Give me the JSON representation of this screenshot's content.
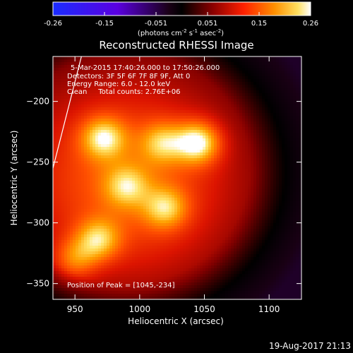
{
  "footer_timestamp": "19-Aug-2017 21:13",
  "colorbar": {
    "ticks": [
      "-0.26",
      "-0.15",
      "-0.051",
      "0.051",
      "0.15",
      "0.26"
    ],
    "units_parts": [
      "(photons cm",
      "-2",
      " s",
      "-1",
      " asec",
      "-2",
      ")"
    ]
  },
  "chart_data": {
    "type": "heatmap",
    "title": "Reconstructed RHESSI Image",
    "xlabel": "Heliocentric X (arcsec)",
    "ylabel": "Heliocentric Y (arcsec)",
    "xlim": [
      933,
      1125
    ],
    "ylim": [
      -363,
      -163
    ],
    "xticks": [
      950,
      1000,
      1050,
      1100
    ],
    "yticks": [
      -200,
      -250,
      -300,
      -350
    ],
    "xtick_labels": [
      "950",
      "1000",
      "1050",
      "1100"
    ],
    "ytick_labels": [
      "−200",
      "−250",
      "−300",
      "−350"
    ],
    "color_range": [
      -0.26,
      0.26
    ],
    "colormap": "RHESSI red-temperature (blue to black to red to yellow to white)",
    "annotations": [
      "5-Mar-2015 17:40:26.000 to 17:50:26.000",
      "Detectors: 3F 5F 6F 7F 8F 9F, Att 0",
      "Energy Range: 6.0 - 12.0 keV",
      "Clean     Total counts: 2.76E+06",
      "Position of Peak = [1045,-234]"
    ],
    "peak": {
      "x": 1045,
      "y": -234
    },
    "sources": [
      {
        "x": 1045,
        "y": -234,
        "intensity": 1.0
      },
      {
        "x": 972,
        "y": -230,
        "intensity": 0.78
      },
      {
        "x": 1018,
        "y": -234,
        "intensity": 0.62
      },
      {
        "x": 990,
        "y": -270,
        "intensity": 0.58
      },
      {
        "x": 1020,
        "y": -288,
        "intensity": 0.66
      },
      {
        "x": 968,
        "y": -314,
        "intensity": 0.72
      },
      {
        "x": 950,
        "y": -330,
        "intensity": 0.55
      }
    ],
    "limb_line": {
      "x": [
        933,
        955
      ],
      "y": [
        -255,
        -163
      ]
    }
  }
}
